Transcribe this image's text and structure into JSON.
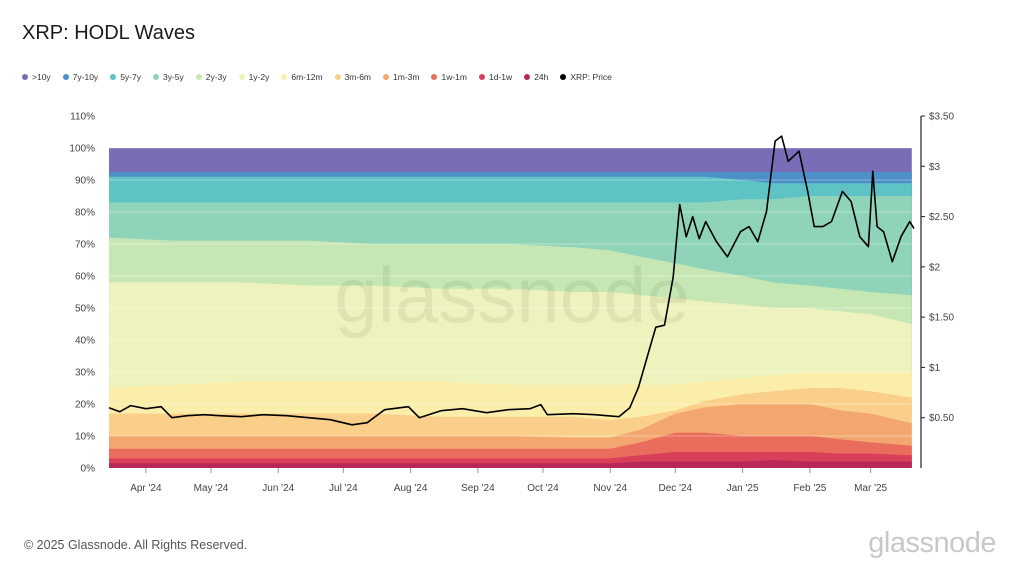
{
  "title": "XRP: HODL Waves",
  "watermark": "glassnode",
  "footer": {
    "copyright": "© 2025 Glassnode. All Rights Reserved.",
    "logo_text": "glassnode"
  },
  "chart_data": {
    "type": "area",
    "title": "XRP: HODL Waves",
    "left_axis": {
      "ticks": [
        "0%",
        "10%",
        "20%",
        "30%",
        "40%",
        "50%",
        "60%",
        "70%",
        "80%",
        "90%",
        "100%",
        "110%"
      ],
      "range": [
        0,
        110
      ]
    },
    "right_axis": {
      "ticks": [
        "$0.50",
        "$1",
        "$1.50",
        "$2",
        "$2.50",
        "$3",
        "$3.50"
      ],
      "range": [
        0,
        3.5
      ]
    },
    "x_ticks": [
      "Apr '24",
      "May '24",
      "Jun '24",
      "Jul '24",
      "Aug '24",
      "Sep '24",
      "Oct '24",
      "Nov '24",
      "Dec '24",
      "Jan '25",
      "Feb '25",
      "Mar '25"
    ],
    "x_tick_dates": [
      "2024-04-01",
      "2024-05-01",
      "2024-06-01",
      "2024-07-01",
      "2024-08-01",
      "2024-09-01",
      "2024-10-01",
      "2024-11-01",
      "2024-12-01",
      "2025-01-01",
      "2025-02-01",
      "2025-03-01"
    ],
    "legend_position": "top-left",
    "grid": true,
    "bands": [
      {
        "name": ">10y",
        "color": "#7a6db8"
      },
      {
        "name": "7y-10y",
        "color": "#4d8fc7"
      },
      {
        "name": "5y-7y",
        "color": "#5ec3c4"
      },
      {
        "name": "3y-5y",
        "color": "#8fd4b8"
      },
      {
        "name": "2y-3y",
        "color": "#c6e7b4"
      },
      {
        "name": "1y-2y",
        "color": "#eef3bd"
      },
      {
        "name": "6m-12m",
        "color": "#fbeeab"
      },
      {
        "name": "3m-6m",
        "color": "#f9cf8a"
      },
      {
        "name": "1m-3m",
        "color": "#f3a66f"
      },
      {
        "name": "1w-1m",
        "color": "#ea6c5c"
      },
      {
        "name": "1d-1w",
        "color": "#d93e5a"
      },
      {
        "name": "24h",
        "color": "#b8295a"
      }
    ],
    "price_series": {
      "name": "XRP: Price",
      "color": "#000000"
    },
    "dates": [
      "2024-03-15",
      "2024-04-15",
      "2024-05-15",
      "2024-06-15",
      "2024-07-15",
      "2024-08-15",
      "2024-09-15",
      "2024-10-15",
      "2024-11-01",
      "2024-11-15",
      "2024-12-01",
      "2024-12-15",
      "2025-01-01",
      "2025-01-15",
      "2025-02-01",
      "2025-02-15",
      "2025-03-01",
      "2025-03-20"
    ],
    "cumulative_tops_pct": {
      "24h": [
        1.5,
        1.5,
        1.5,
        1.5,
        1.5,
        1.5,
        1.5,
        1.5,
        1.5,
        2,
        2,
        2,
        2,
        2.5,
        2,
        2,
        2,
        2
      ],
      "1d-1w": [
        3,
        3,
        3,
        3,
        3,
        3,
        3,
        3,
        3,
        4,
        5,
        5,
        5,
        5,
        5,
        4.5,
        4.5,
        4
      ],
      "1w-1m": [
        6,
        6,
        6,
        6,
        6,
        6,
        6,
        6,
        6,
        8,
        11,
        11,
        10,
        10,
        10,
        9,
        8,
        7
      ],
      "1m-3m": [
        10,
        10,
        10,
        10,
        10,
        10,
        10,
        9.5,
        9.5,
        12,
        17,
        19,
        20,
        20,
        20,
        18,
        17,
        14
      ],
      "3m-6m": [
        17,
        17,
        17,
        17,
        17,
        16,
        16,
        16,
        15,
        16,
        18,
        21,
        23,
        24,
        25,
        25,
        24,
        22
      ],
      "6m-12m": [
        25,
        26,
        27,
        27,
        27,
        27,
        26,
        26,
        26,
        26,
        26,
        27,
        28,
        29,
        30,
        30,
        30,
        30
      ],
      "1y-2y": [
        58,
        58,
        58,
        57,
        57,
        56,
        56,
        55,
        55,
        54,
        53,
        52,
        51,
        50,
        50,
        49,
        48,
        45
      ],
      "2y-3y": [
        72,
        71,
        71,
        71,
        70,
        70,
        70,
        69,
        68,
        66,
        64,
        62,
        60,
        58,
        57,
        56,
        55,
        54
      ],
      "3y-5y": [
        83,
        83,
        83,
        83,
        83,
        83,
        83,
        83,
        83,
        83,
        83,
        83,
        84,
        84,
        85,
        85,
        85,
        85
      ],
      "5y-7y": [
        91,
        91,
        91,
        91,
        91,
        91,
        91,
        91,
        91,
        91,
        91,
        91,
        90,
        89,
        89,
        89,
        89,
        89
      ],
      "7y-10y": [
        92.5,
        92.5,
        92.5,
        92.5,
        92.5,
        92.5,
        92.5,
        92.5,
        92.5,
        92.5,
        92.5,
        92.5,
        92.5,
        92.5,
        92.5,
        92.5,
        92.5,
        92.5
      ],
      ">10y": [
        100,
        100,
        100,
        100,
        100,
        100,
        100,
        100,
        100,
        100,
        100,
        100,
        100,
        100,
        100,
        100,
        100,
        100
      ]
    },
    "price_points": [
      [
        "2024-03-15",
        0.6
      ],
      [
        "2024-03-20",
        0.56
      ],
      [
        "2024-03-25",
        0.62
      ],
      [
        "2024-04-01",
        0.59
      ],
      [
        "2024-04-08",
        0.61
      ],
      [
        "2024-04-13",
        0.5
      ],
      [
        "2024-04-20",
        0.52
      ],
      [
        "2024-04-28",
        0.53
      ],
      [
        "2024-05-05",
        0.52
      ],
      [
        "2024-05-15",
        0.51
      ],
      [
        "2024-05-25",
        0.53
      ],
      [
        "2024-06-05",
        0.52
      ],
      [
        "2024-06-15",
        0.5
      ],
      [
        "2024-06-25",
        0.48
      ],
      [
        "2024-07-05",
        0.43
      ],
      [
        "2024-07-12",
        0.45
      ],
      [
        "2024-07-20",
        0.58
      ],
      [
        "2024-07-31",
        0.61
      ],
      [
        "2024-08-05",
        0.5
      ],
      [
        "2024-08-15",
        0.57
      ],
      [
        "2024-08-25",
        0.59
      ],
      [
        "2024-09-05",
        0.55
      ],
      [
        "2024-09-15",
        0.58
      ],
      [
        "2024-09-25",
        0.59
      ],
      [
        "2024-09-30",
        0.63
      ],
      [
        "2024-10-03",
        0.53
      ],
      [
        "2024-10-15",
        0.54
      ],
      [
        "2024-10-25",
        0.53
      ],
      [
        "2024-11-05",
        0.51
      ],
      [
        "2024-11-10",
        0.6
      ],
      [
        "2024-11-14",
        0.8
      ],
      [
        "2024-11-18",
        1.1
      ],
      [
        "2024-11-22",
        1.4
      ],
      [
        "2024-11-26",
        1.42
      ],
      [
        "2024-11-30",
        1.9
      ],
      [
        "2024-12-03",
        2.62
      ],
      [
        "2024-12-06",
        2.3
      ],
      [
        "2024-12-09",
        2.5
      ],
      [
        "2024-12-12",
        2.28
      ],
      [
        "2024-12-15",
        2.45
      ],
      [
        "2024-12-20",
        2.25
      ],
      [
        "2024-12-25",
        2.1
      ],
      [
        "2024-12-31",
        2.35
      ],
      [
        "2025-01-04",
        2.4
      ],
      [
        "2025-01-08",
        2.25
      ],
      [
        "2025-01-12",
        2.55
      ],
      [
        "2025-01-16",
        3.25
      ],
      [
        "2025-01-19",
        3.3
      ],
      [
        "2025-01-22",
        3.05
      ],
      [
        "2025-01-27",
        3.15
      ],
      [
        "2025-01-31",
        2.75
      ],
      [
        "2025-02-03",
        2.4
      ],
      [
        "2025-02-07",
        2.4
      ],
      [
        "2025-02-11",
        2.45
      ],
      [
        "2025-02-16",
        2.75
      ],
      [
        "2025-02-20",
        2.65
      ],
      [
        "2025-02-24",
        2.3
      ],
      [
        "2025-02-28",
        2.2
      ],
      [
        "2025-03-02",
        2.95
      ],
      [
        "2025-03-04",
        2.4
      ],
      [
        "2025-03-07",
        2.35
      ],
      [
        "2025-03-11",
        2.05
      ],
      [
        "2025-03-15",
        2.3
      ],
      [
        "2025-03-19",
        2.45
      ],
      [
        "2025-03-21",
        2.38
      ]
    ]
  }
}
